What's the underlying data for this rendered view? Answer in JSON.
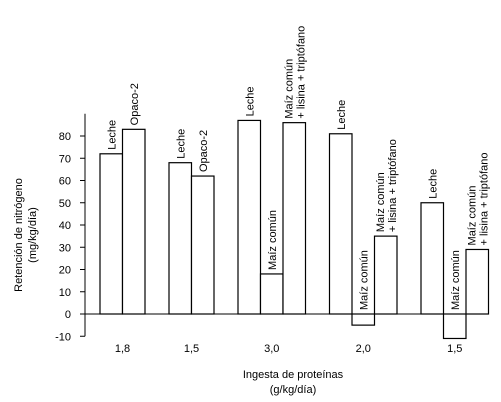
{
  "chart_data": {
    "type": "bar",
    "ylabel": [
      "Retención de nitrógeno",
      "(mg/kg/día)"
    ],
    "xlabel": [
      "Ingesta de proteínas",
      "(g/kg/día)"
    ],
    "ylim": [
      -10,
      90
    ],
    "yticks": [
      -10,
      0,
      10,
      20,
      30,
      40,
      50,
      60,
      70,
      80
    ],
    "color": "#000000",
    "groups": [
      {
        "label": "1,8",
        "bars": [
          {
            "name": [
              "Leche"
            ],
            "value": 72
          },
          {
            "name": [
              "Opaco-2"
            ],
            "value": 83
          }
        ]
      },
      {
        "label": "1,5",
        "bars": [
          {
            "name": [
              "Leche"
            ],
            "value": 68
          },
          {
            "name": [
              "Opaco-2"
            ],
            "value": 62
          }
        ]
      },
      {
        "label": "3,0",
        "bars": [
          {
            "name": [
              "Leche"
            ],
            "value": 87
          },
          {
            "name": [
              "Maíz común"
            ],
            "value": 18
          },
          {
            "name": [
              "Maíz común",
              "+ lisina + triptófano"
            ],
            "value": 86
          }
        ]
      },
      {
        "label": "2,0",
        "bars": [
          {
            "name": [
              "Leche"
            ],
            "value": 81
          },
          {
            "name": [
              "Maíz común"
            ],
            "value": -5
          },
          {
            "name": [
              "Maíz común",
              "+ lisina + triptófano"
            ],
            "value": 35
          }
        ]
      },
      {
        "label": "1,5",
        "bars": [
          {
            "name": [
              "Leche"
            ],
            "value": 50
          },
          {
            "name": [
              "Maíz común"
            ],
            "value": -11
          },
          {
            "name": [
              "Maíz común",
              "+ lisina + triptófano"
            ],
            "value": 29
          }
        ]
      }
    ]
  }
}
